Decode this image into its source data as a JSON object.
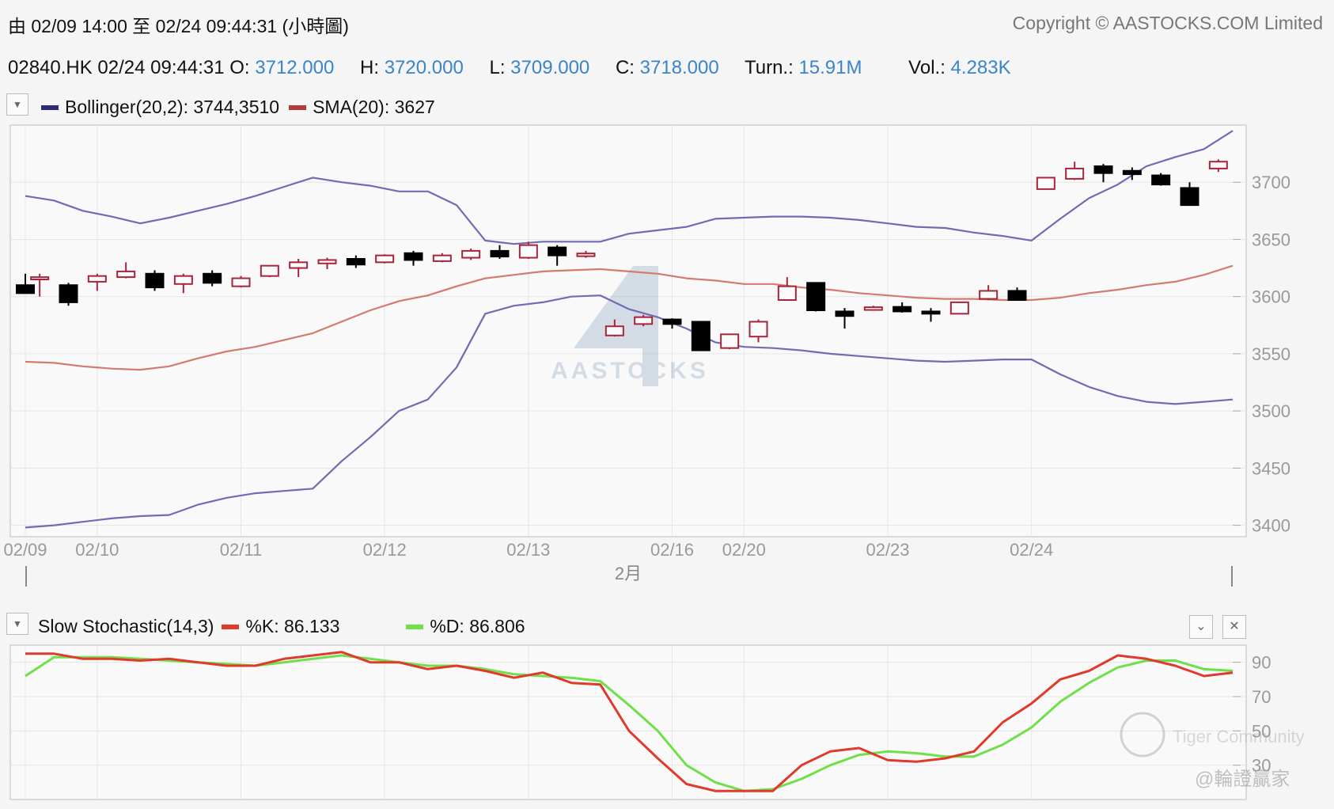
{
  "header": {
    "range_label": "由  02/09 14:00 至  02/24 09:44:31 (小時圖)",
    "copyright": "Copyright © AASTOCKS.COM Limited"
  },
  "quote": {
    "symbol_time": "02840.HK 02/24 09:44:31",
    "open_label": "O:",
    "open": "3712.000",
    "high_label": "H:",
    "high": "3720.000",
    "low_label": "L:",
    "low": "3709.000",
    "close_label": "C:",
    "close": "3718.000",
    "turnover_label": "Turn.:",
    "turnover": "15.91M",
    "volume_label": "Vol.:",
    "volume": "4.283K"
  },
  "main_legend": {
    "bollinger_label": "Bollinger(20,2): 3744,3510",
    "sma_label": "SMA(20): 3627",
    "bollinger_color": "#2e2a7a",
    "sma_color": "#b33a3a"
  },
  "stoch_legend": {
    "title": "Slow Stochastic(14,3)",
    "k_label": "%K: 86.133",
    "d_label": "%D: 86.806",
    "k_color": "#e03a2c",
    "d_color": "#6fe04a"
  },
  "watermarks": {
    "aastocks": "AASTOCKS",
    "tiger": "Tiger Community",
    "handle": "@輪證贏家"
  },
  "chart_data": [
    {
      "type": "candlestick",
      "ylim": [
        3390,
        3750
      ],
      "y_ticks": [
        3400,
        3450,
        3500,
        3550,
        3600,
        3650,
        3700
      ],
      "x_tick_labels": [
        {
          "label": "02/09",
          "index": 0
        },
        {
          "label": "02/10",
          "index": 5
        },
        {
          "label": "02/11",
          "index": 15
        },
        {
          "label": "02/12",
          "index": 25
        },
        {
          "label": "02/13",
          "index": 35
        },
        {
          "label": "02/16",
          "index": 45
        },
        {
          "label": "02/20",
          "index": 50
        },
        {
          "label": "02/23",
          "index": 60
        },
        {
          "label": "02/24",
          "index": 70
        }
      ],
      "month_label": "2月",
      "up_color": "#a8243a",
      "down_color": "#000000",
      "candles": [
        [
          3610,
          3620,
          3604,
          3603
        ],
        [
          3615,
          3620,
          3600,
          3617
        ],
        [
          3610,
          3612,
          3592,
          3595
        ],
        [
          3613,
          3620,
          3605,
          3618
        ],
        [
          3617,
          3630,
          3616,
          3622
        ],
        [
          3620,
          3623,
          3605,
          3608
        ],
        [
          3611,
          3620,
          3603,
          3618
        ],
        [
          3620,
          3623,
          3609,
          3612
        ],
        [
          3609,
          3618,
          3608,
          3616
        ],
        [
          3618,
          3627,
          3617,
          3627
        ],
        [
          3625,
          3633,
          3617,
          3630
        ],
        [
          3629,
          3634,
          3624,
          3632
        ],
        [
          3633,
          3636,
          3625,
          3628
        ],
        [
          3630,
          3637,
          3629,
          3636
        ],
        [
          3638,
          3640,
          3627,
          3632
        ],
        [
          3631,
          3638,
          3630,
          3636
        ],
        [
          3634,
          3642,
          3632,
          3640
        ],
        [
          3640,
          3645,
          3633,
          3635
        ],
        [
          3634,
          3648,
          3633,
          3645
        ],
        [
          3643,
          3645,
          3627,
          3636
        ],
        [
          3636,
          3640,
          3634,
          3637
        ],
        [
          3566,
          3580,
          3565,
          3574
        ],
        [
          3576,
          3584,
          3574,
          3582
        ],
        [
          3580,
          3581,
          3572,
          3576
        ],
        [
          3578,
          3578,
          3553,
          3553
        ],
        [
          3555,
          3565,
          3554,
          3567
        ],
        [
          3565,
          3580,
          3560,
          3578
        ],
        [
          3597,
          3617,
          3597,
          3609
        ],
        [
          3612,
          3612,
          3587,
          3588
        ],
        [
          3587,
          3590,
          3572,
          3583
        ],
        [
          3589,
          3592,
          3588,
          3590
        ],
        [
          3591,
          3595,
          3586,
          3587
        ],
        [
          3587,
          3590,
          3578,
          3585
        ],
        [
          3585,
          3595,
          3585,
          3595
        ],
        [
          3598,
          3610,
          3597,
          3605
        ],
        [
          3605,
          3608,
          3597,
          3597
        ],
        [
          3694,
          3704,
          3694,
          3704
        ],
        [
          3703,
          3718,
          3702,
          3712
        ],
        [
          3714,
          3716,
          3700,
          3708
        ],
        [
          3710,
          3713,
          3702,
          3707
        ],
        [
          3706,
          3708,
          3697,
          3698
        ],
        [
          3695,
          3700,
          3680,
          3680
        ],
        [
          3712,
          3720,
          3709,
          3718
        ]
      ],
      "candle_index": [
        0,
        1,
        3,
        5,
        7,
        9,
        11,
        13,
        15,
        17,
        19,
        21,
        23,
        25,
        27,
        29,
        31,
        33,
        35,
        37,
        39,
        41,
        43,
        45,
        47,
        49,
        51,
        53,
        55,
        57,
        59,
        61,
        63,
        65,
        67,
        69,
        71,
        73,
        75,
        77,
        79,
        81,
        83
      ],
      "bollinger_upper": [
        [
          0,
          3688
        ],
        [
          2,
          3684
        ],
        [
          4,
          3675
        ],
        [
          6,
          3670
        ],
        [
          8,
          3664
        ],
        [
          10,
          3669
        ],
        [
          12,
          3675
        ],
        [
          14,
          3681
        ],
        [
          16,
          3688
        ],
        [
          18,
          3696
        ],
        [
          20,
          3704
        ],
        [
          22,
          3700
        ],
        [
          24,
          3697
        ],
        [
          26,
          3692
        ],
        [
          28,
          3692
        ],
        [
          30,
          3680
        ],
        [
          32,
          3649
        ],
        [
          34,
          3646
        ],
        [
          36,
          3648
        ],
        [
          38,
          3648
        ],
        [
          40,
          3648
        ],
        [
          42,
          3655
        ],
        [
          44,
          3658
        ],
        [
          46,
          3661
        ],
        [
          48,
          3668
        ],
        [
          50,
          3669
        ],
        [
          52,
          3670
        ],
        [
          54,
          3670
        ],
        [
          56,
          3669
        ],
        [
          58,
          3667
        ],
        [
          60,
          3664
        ],
        [
          62,
          3661
        ],
        [
          64,
          3660
        ],
        [
          66,
          3656
        ],
        [
          68,
          3653
        ],
        [
          70,
          3649
        ],
        [
          72,
          3668
        ],
        [
          74,
          3686
        ],
        [
          76,
          3698
        ],
        [
          78,
          3714
        ],
        [
          80,
          3722
        ],
        [
          82,
          3729
        ],
        [
          84,
          3745
        ]
      ],
      "bollinger_lower": [
        [
          0,
          3398
        ],
        [
          2,
          3400
        ],
        [
          4,
          3403
        ],
        [
          6,
          3406
        ],
        [
          8,
          3408
        ],
        [
          10,
          3409
        ],
        [
          12,
          3418
        ],
        [
          14,
          3424
        ],
        [
          16,
          3428
        ],
        [
          18,
          3430
        ],
        [
          20,
          3432
        ],
        [
          22,
          3456
        ],
        [
          24,
          3477
        ],
        [
          26,
          3500
        ],
        [
          28,
          3510
        ],
        [
          30,
          3538
        ],
        [
          32,
          3585
        ],
        [
          34,
          3592
        ],
        [
          36,
          3595
        ],
        [
          38,
          3600
        ],
        [
          40,
          3601
        ],
        [
          42,
          3589
        ],
        [
          44,
          3582
        ],
        [
          46,
          3572
        ],
        [
          48,
          3560
        ],
        [
          50,
          3556
        ],
        [
          52,
          3555
        ],
        [
          54,
          3553
        ],
        [
          56,
          3550
        ],
        [
          58,
          3548
        ],
        [
          60,
          3546
        ],
        [
          62,
          3544
        ],
        [
          64,
          3543
        ],
        [
          66,
          3544
        ],
        [
          68,
          3545
        ],
        [
          70,
          3545
        ],
        [
          72,
          3532
        ],
        [
          74,
          3521
        ],
        [
          76,
          3513
        ],
        [
          78,
          3508
        ],
        [
          80,
          3506
        ],
        [
          82,
          3508
        ],
        [
          84,
          3510
        ]
      ],
      "sma": [
        [
          0,
          3543
        ],
        [
          2,
          3542
        ],
        [
          4,
          3539
        ],
        [
          6,
          3537
        ],
        [
          8,
          3536
        ],
        [
          10,
          3539
        ],
        [
          12,
          3546
        ],
        [
          14,
          3552
        ],
        [
          16,
          3556
        ],
        [
          18,
          3562
        ],
        [
          20,
          3568
        ],
        [
          22,
          3578
        ],
        [
          24,
          3588
        ],
        [
          26,
          3596
        ],
        [
          28,
          3601
        ],
        [
          30,
          3609
        ],
        [
          32,
          3616
        ],
        [
          34,
          3619
        ],
        [
          36,
          3622
        ],
        [
          38,
          3623
        ],
        [
          40,
          3624
        ],
        [
          42,
          3622
        ],
        [
          44,
          3620
        ],
        [
          46,
          3616
        ],
        [
          48,
          3614
        ],
        [
          50,
          3611
        ],
        [
          52,
          3611
        ],
        [
          54,
          3608
        ],
        [
          56,
          3606
        ],
        [
          58,
          3603
        ],
        [
          60,
          3601
        ],
        [
          62,
          3599
        ],
        [
          64,
          3598
        ],
        [
          66,
          3598
        ],
        [
          68,
          3597
        ],
        [
          70,
          3597
        ],
        [
          72,
          3599
        ],
        [
          74,
          3603
        ],
        [
          76,
          3606
        ],
        [
          78,
          3610
        ],
        [
          80,
          3613
        ],
        [
          82,
          3619
        ],
        [
          84,
          3627
        ]
      ]
    },
    {
      "type": "line",
      "title": "Slow Stochastic(14,3)",
      "ylim": [
        10,
        100
      ],
      "y_ticks": [
        30,
        50,
        70,
        90
      ],
      "series": [
        {
          "name": "%K",
          "values": [
            [
              0,
              95
            ],
            [
              2,
              95
            ],
            [
              4,
              92
            ],
            [
              6,
              92
            ],
            [
              8,
              91
            ],
            [
              10,
              92
            ],
            [
              12,
              90
            ],
            [
              14,
              88
            ],
            [
              16,
              88
            ],
            [
              18,
              92
            ],
            [
              20,
              94
            ],
            [
              22,
              96
            ],
            [
              24,
              90
            ],
            [
              26,
              90
            ],
            [
              28,
              86
            ],
            [
              30,
              88
            ],
            [
              32,
              85
            ],
            [
              34,
              81
            ],
            [
              36,
              84
            ],
            [
              38,
              78
            ],
            [
              40,
              77
            ],
            [
              42,
              50
            ],
            [
              44,
              34
            ],
            [
              46,
              19
            ],
            [
              48,
              15
            ],
            [
              50,
              15
            ],
            [
              52,
              15
            ],
            [
              54,
              30
            ],
            [
              56,
              38
            ],
            [
              58,
              40
            ],
            [
              60,
              33
            ],
            [
              62,
              32
            ],
            [
              64,
              34
            ],
            [
              66,
              38
            ],
            [
              68,
              55
            ],
            [
              70,
              66
            ],
            [
              72,
              80
            ],
            [
              74,
              85
            ],
            [
              76,
              94
            ],
            [
              78,
              92
            ],
            [
              80,
              88
            ],
            [
              82,
              82
            ],
            [
              84,
              84
            ]
          ]
        },
        {
          "name": "%D",
          "values": [
            [
              0,
              82
            ],
            [
              2,
              93
            ],
            [
              4,
              93
            ],
            [
              6,
              93
            ],
            [
              8,
              92
            ],
            [
              10,
              91
            ],
            [
              12,
              90
            ],
            [
              14,
              89
            ],
            [
              16,
              88
            ],
            [
              18,
              90
            ],
            [
              20,
              92
            ],
            [
              22,
              94
            ],
            [
              24,
              92
            ],
            [
              26,
              90
            ],
            [
              28,
              88
            ],
            [
              30,
              88
            ],
            [
              32,
              86
            ],
            [
              34,
              83
            ],
            [
              36,
              82
            ],
            [
              38,
              81
            ],
            [
              40,
              79
            ],
            [
              42,
              65
            ],
            [
              44,
              50
            ],
            [
              46,
              30
            ],
            [
              48,
              20
            ],
            [
              50,
              15
            ],
            [
              52,
              16
            ],
            [
              54,
              22
            ],
            [
              56,
              30
            ],
            [
              58,
              36
            ],
            [
              60,
              38
            ],
            [
              62,
              37
            ],
            [
              64,
              35
            ],
            [
              66,
              35
            ],
            [
              68,
              42
            ],
            [
              70,
              52
            ],
            [
              72,
              67
            ],
            [
              74,
              78
            ],
            [
              76,
              87
            ],
            [
              78,
              91
            ],
            [
              80,
              91
            ],
            [
              82,
              86
            ],
            [
              84,
              85
            ]
          ]
        }
      ]
    }
  ]
}
